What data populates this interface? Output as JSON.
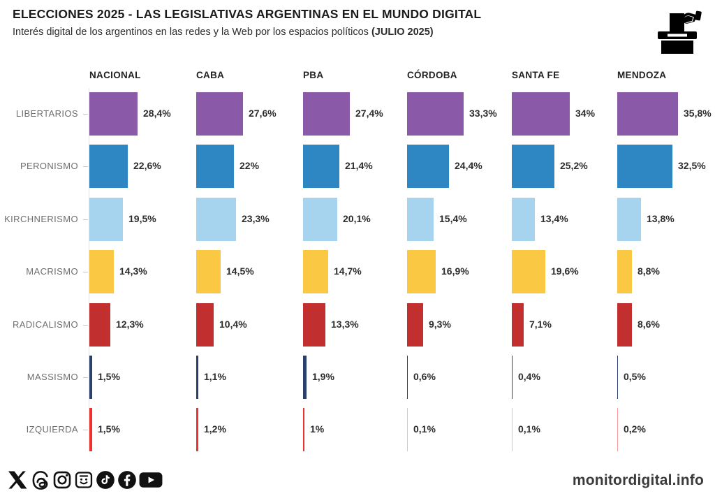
{
  "header": {
    "title": "ELECCIONES 2025 - LAS LEGISLATIVAS ARGENTINAS EN EL MUNDO DIGITAL",
    "subtitle_text": "Interés digital de los argentinos en las redes y la Web por los espacios políticos ",
    "subtitle_bold": "(JULIO 2025)",
    "ballot_icon": "ballot-box-icon"
  },
  "chart_data": {
    "type": "bar",
    "layout": "small-multiples, horizontal bars per district, value labels at bar end",
    "unit": "%",
    "xlim": [
      0,
      40
    ],
    "grid": false,
    "categories": [
      "NACIONAL",
      "CABA",
      "PBA",
      "CÓRDOBA",
      "SANTA FE",
      "MENDOZA"
    ],
    "series": [
      {
        "name": "LIBERTARIOS",
        "color": "#8a59a8",
        "values": [
          28.4,
          27.6,
          27.4,
          33.3,
          34,
          35.8
        ],
        "labels": [
          "28,4%",
          "27,6%",
          "27,4%",
          "33,3%",
          "34%",
          "35,8%"
        ]
      },
      {
        "name": "PERONISMO",
        "color": "#2e86c3",
        "values": [
          22.6,
          22,
          21.4,
          24.4,
          25.2,
          32.5
        ],
        "labels": [
          "22,6%",
          "22%",
          "21,4%",
          "24,4%",
          "25,2%",
          "32,5%"
        ]
      },
      {
        "name": "KIRCHNERISMO",
        "color": "#a6d4ee",
        "values": [
          19.5,
          23.3,
          20.1,
          15.4,
          13.4,
          13.8
        ],
        "labels": [
          "19,5%",
          "23,3%",
          "20,1%",
          "15,4%",
          "13,4%",
          "13,8%"
        ]
      },
      {
        "name": "MACRISMO",
        "color": "#fbc843",
        "values": [
          14.3,
          14.5,
          14.7,
          16.9,
          19.6,
          8.8
        ],
        "labels": [
          "14,3%",
          "14,5%",
          "14,7%",
          "16,9%",
          "19,6%",
          "8,8%"
        ]
      },
      {
        "name": "RADICALISMO",
        "color": "#c22f2f",
        "values": [
          12.3,
          10.4,
          13.3,
          9.3,
          7.1,
          8.6
        ],
        "labels": [
          "12,3%",
          "10,4%",
          "13,3%",
          "9,3%",
          "7,1%",
          "8,6%"
        ]
      },
      {
        "name": "MASSISMO",
        "color": "#2a3f6b",
        "values": [
          1.5,
          1.1,
          1.9,
          0.6,
          0.4,
          0.5
        ],
        "labels": [
          "1,5%",
          "1,1%",
          "1,9%",
          "0,6%",
          "0,4%",
          "0,5%"
        ]
      },
      {
        "name": "IZQUIERDA",
        "color": "#ed312c",
        "values": [
          1.5,
          1.2,
          1,
          0.1,
          0.1,
          0.2
        ],
        "labels": [
          "1,5%",
          "1,2%",
          "1%",
          "0,1%",
          "0,1%",
          "0,2%"
        ]
      }
    ]
  },
  "footer": {
    "site": "monitordigital.info",
    "social_icons": [
      "x-icon",
      "threads-icon",
      "instagram-icon",
      "face-badge-icon",
      "tiktok-icon",
      "facebook-icon",
      "youtube-icon"
    ]
  },
  "colors": {
    "background": "#ffffff",
    "axis_line": "#e3e3e3",
    "tick": "#c9c9c9",
    "title_text": "#1b1b1b",
    "value_text": "#2d2d2d",
    "row_label_text": "#6e6e6e"
  }
}
